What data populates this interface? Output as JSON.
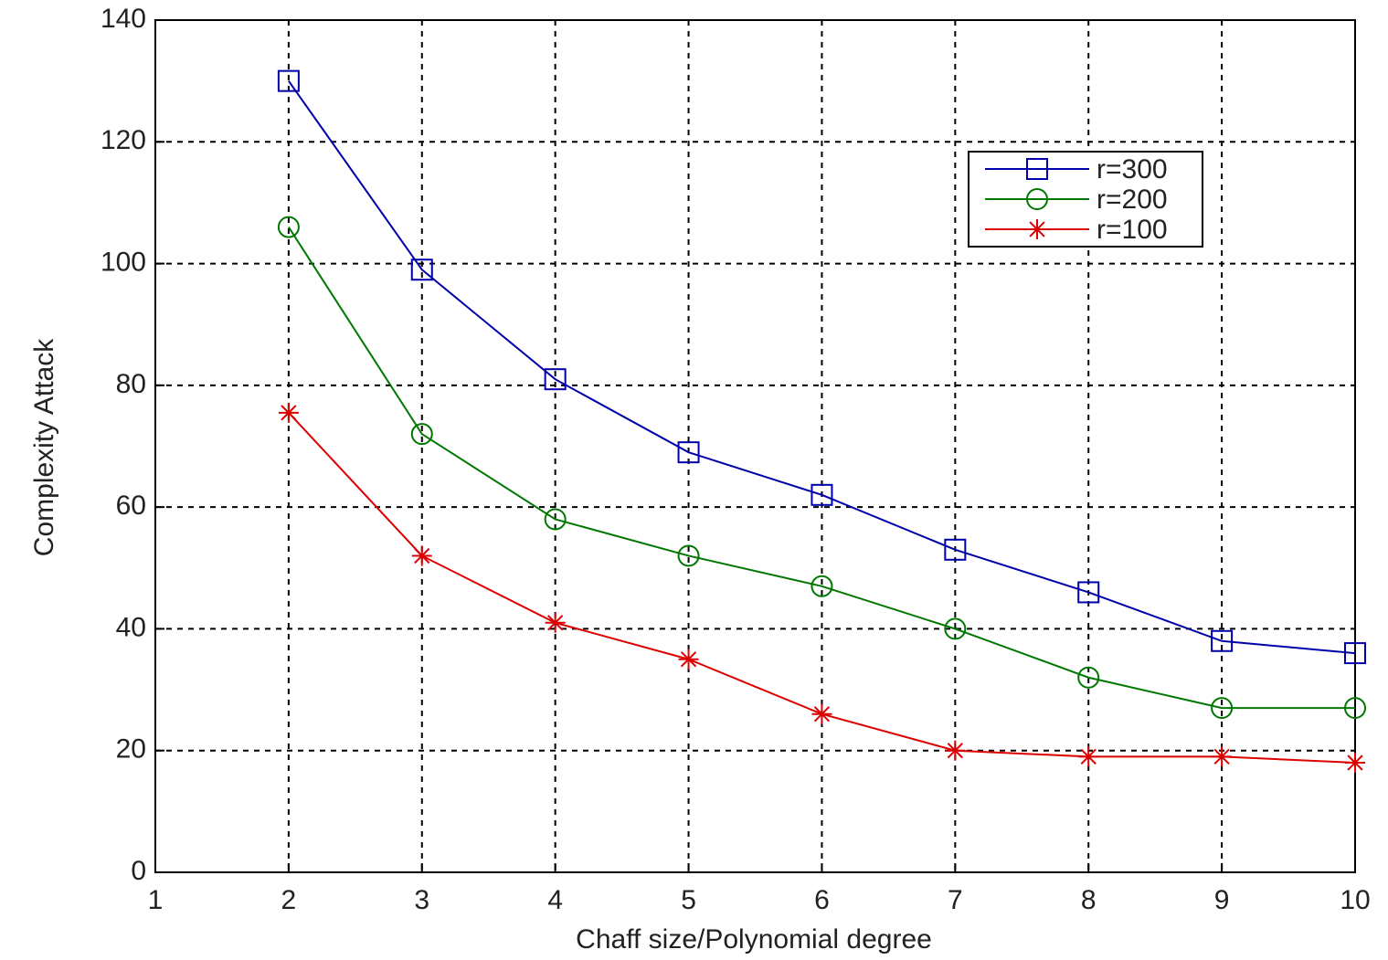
{
  "chart_data": {
    "type": "line",
    "x_label": "Chaff size/Polynomial degree",
    "y_label": "Complexity Attack",
    "x": [
      2,
      3,
      4,
      5,
      6,
      7,
      8,
      9,
      10
    ],
    "series": [
      {
        "name": "r=300",
        "color": "#0000aa",
        "marker": "square",
        "values": [
          130,
          99,
          81,
          69,
          62,
          53,
          46,
          38,
          36
        ]
      },
      {
        "name": "r=200",
        "color": "#007700",
        "marker": "circle",
        "values": [
          106,
          72,
          58,
          52,
          47,
          40,
          32,
          27,
          27
        ]
      },
      {
        "name": "r=100",
        "color": "#dd0000",
        "marker": "star",
        "values": [
          75.5,
          52,
          41,
          35,
          26,
          20,
          19,
          19,
          18
        ]
      }
    ],
    "xlim": [
      1,
      10
    ],
    "xticks": [
      1,
      2,
      3,
      4,
      5,
      6,
      7,
      8,
      9,
      10
    ],
    "ylim": [
      0,
      140
    ],
    "yticks": [
      0,
      20,
      40,
      60,
      80,
      100,
      120,
      140
    ],
    "grid": true,
    "legend": "northeast"
  }
}
